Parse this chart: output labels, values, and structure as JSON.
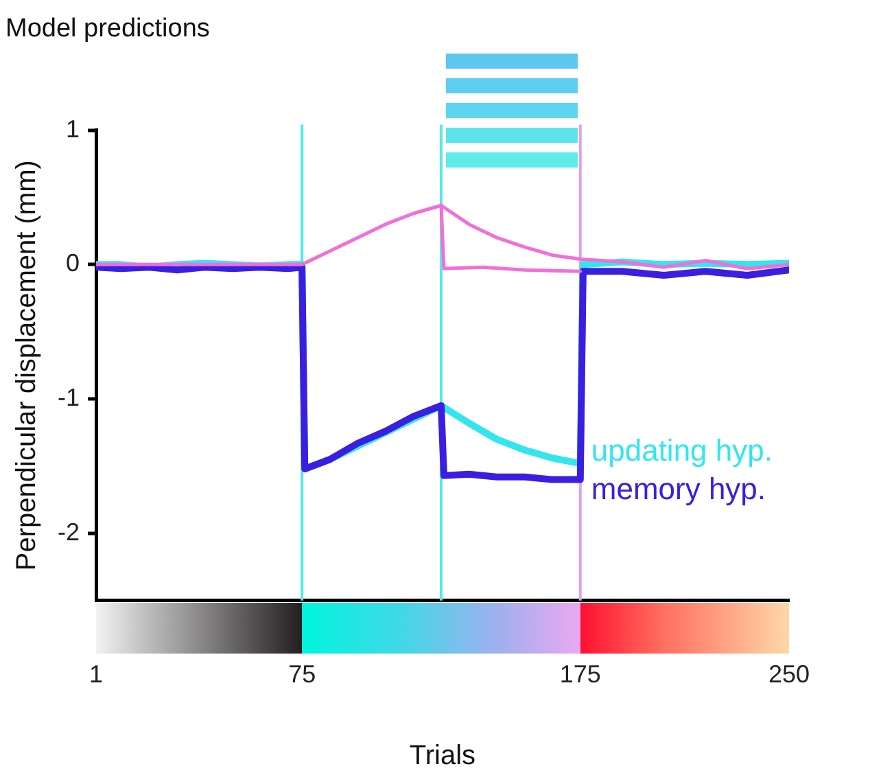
{
  "chart_data": {
    "type": "line",
    "title": "Model predictions",
    "xlabel": "Trials",
    "ylabel": "Perpendicular displacement (mm)",
    "xlim": [
      1,
      250
    ],
    "xticks": [
      1,
      75,
      175,
      250
    ],
    "ylim": [
      -2.5,
      1
    ],
    "yticks": [
      -2,
      -1,
      0,
      1
    ],
    "grid": false,
    "marker": "none",
    "line_style": "solid",
    "ref_lines": [
      {
        "axis": "x",
        "value": 75,
        "color": "#55e8ec"
      },
      {
        "axis": "x",
        "value": 125,
        "color": "#55e8ec"
      },
      {
        "axis": "x",
        "value": 175,
        "color": "#d8a4f0"
      }
    ],
    "series": [
      {
        "color": "#f070d8",
        "x": [
          1,
          75,
          85,
          95,
          105,
          115,
          125,
          135,
          145,
          155,
          165,
          175,
          190,
          205,
          220,
          235,
          250
        ],
        "values": [
          0,
          0,
          0.1,
          0.2,
          0.3,
          0.38,
          0.44,
          0.3,
          0.2,
          0.13,
          0.07,
          0.04,
          0.02,
          -0.02,
          0.03,
          -0.03,
          0
        ]
      },
      {
        "color": "#f070d8",
        "x": [
          125,
          126,
          140,
          155,
          175
        ],
        "values": [
          0.44,
          -0.03,
          -0.02,
          -0.04,
          -0.05
        ]
      },
      {
        "name": "memory hyp.",
        "color": "#3a1fe0",
        "x": [
          1,
          10,
          20,
          30,
          40,
          50,
          60,
          70,
          75,
          76,
          85,
          95,
          105,
          115,
          125,
          126,
          135,
          145,
          155,
          165,
          175,
          176,
          190,
          205,
          220,
          235,
          250
        ],
        "values": [
          -0.02,
          -0.03,
          -0.02,
          -0.04,
          -0.02,
          -0.03,
          -0.02,
          -0.03,
          -0.02,
          -1.52,
          -1.45,
          -1.33,
          -1.24,
          -1.13,
          -1.05,
          -1.57,
          -1.56,
          -1.58,
          -1.58,
          -1.6,
          -1.6,
          -0.05,
          -0.05,
          -0.08,
          -0.05,
          -0.08,
          -0.04
        ]
      },
      {
        "name": "updating hyp.",
        "color": "#33e6ee",
        "x": [
          1,
          10,
          20,
          30,
          40,
          50,
          60,
          70,
          75,
          76,
          85,
          95,
          105,
          115,
          125,
          135,
          145,
          155,
          165,
          175,
          176,
          190,
          205,
          220,
          235,
          250
        ],
        "values": [
          0,
          0,
          -0.02,
          0,
          0.01,
          0,
          -0.01,
          0,
          0,
          -1.52,
          -1.45,
          -1.35,
          -1.25,
          -1.15,
          -1.05,
          -1.18,
          -1.3,
          -1.38,
          -1.44,
          -1.48,
          0,
          0.02,
          0,
          0.01,
          0,
          0.01
        ]
      }
    ]
  }
}
